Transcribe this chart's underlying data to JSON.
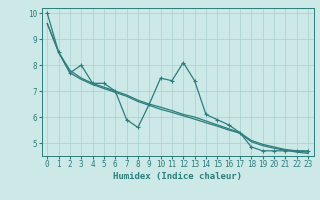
{
  "title": "",
  "xlabel": "Humidex (Indice chaleur)",
  "ylabel": "",
  "xlim": [
    -0.5,
    23.5
  ],
  "ylim": [
    4.5,
    10.2
  ],
  "yticks": [
    5,
    6,
    7,
    8,
    9,
    10
  ],
  "xticks": [
    0,
    1,
    2,
    3,
    4,
    5,
    6,
    7,
    8,
    9,
    10,
    11,
    12,
    13,
    14,
    15,
    16,
    17,
    18,
    19,
    20,
    21,
    22,
    23
  ],
  "background_color": "#cce9e8",
  "grid_color": "#aacfcf",
  "line_color": "#2d7d7d",
  "line1_x": [
    0,
    1,
    2,
    3,
    4,
    5,
    6,
    7,
    8,
    9,
    10,
    11,
    12,
    13,
    14,
    15,
    16,
    17,
    18,
    19,
    20,
    21,
    22,
    23
  ],
  "line1_y": [
    10.0,
    8.5,
    7.7,
    8.0,
    7.3,
    7.3,
    7.0,
    5.9,
    5.6,
    6.5,
    7.5,
    7.4,
    8.1,
    7.4,
    6.1,
    5.9,
    5.7,
    5.4,
    4.85,
    4.7,
    4.7,
    4.7,
    4.7,
    4.7
  ],
  "line2_x": [
    0,
    1,
    2,
    3,
    4,
    5,
    6,
    7,
    8,
    9,
    10,
    11,
    12,
    13,
    14,
    15,
    16,
    17,
    18,
    19,
    20,
    21,
    22,
    23
  ],
  "line2_y": [
    9.6,
    8.5,
    7.8,
    7.5,
    7.3,
    7.15,
    7.0,
    6.85,
    6.65,
    6.5,
    6.38,
    6.25,
    6.1,
    6.0,
    5.85,
    5.7,
    5.55,
    5.4,
    5.1,
    4.95,
    4.85,
    4.75,
    4.7,
    4.65
  ],
  "line3_x": [
    0,
    1,
    2,
    3,
    4,
    5,
    6,
    7,
    8,
    9,
    10,
    11,
    12,
    13,
    14,
    15,
    16,
    17,
    18,
    19,
    20,
    21,
    22,
    23
  ],
  "line3_y": [
    9.6,
    8.5,
    7.7,
    7.45,
    7.25,
    7.1,
    6.95,
    6.8,
    6.6,
    6.45,
    6.3,
    6.18,
    6.05,
    5.92,
    5.78,
    5.65,
    5.5,
    5.38,
    5.05,
    4.9,
    4.8,
    4.72,
    4.65,
    4.6
  ],
  "markersize": 3,
  "linewidth": 0.9,
  "tick_fontsize": 5.5,
  "label_fontsize": 6.5
}
